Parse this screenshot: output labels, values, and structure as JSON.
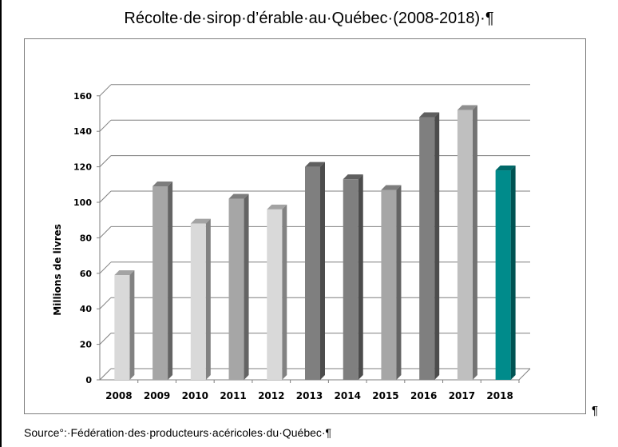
{
  "chart_data": {
    "type": "bar",
    "title": "Récolte·de·sirop·d’érable·au·Québec·(2008-2018)·¶",
    "xlabel": "",
    "ylabel": "Millions de livres",
    "ylim": [
      0,
      160
    ],
    "yticks": [
      0,
      20,
      40,
      60,
      80,
      100,
      120,
      140,
      160
    ],
    "grid": true,
    "categories": [
      "2008",
      "2009",
      "2010",
      "2011",
      "2012",
      "2013",
      "2014",
      "2015",
      "2016",
      "2017",
      "2018"
    ],
    "values": [
      59,
      109,
      88,
      102,
      96,
      120,
      113,
      107,
      148,
      152,
      118
    ],
    "colors": [
      "#d9d9d9",
      "#a6a6a6",
      "#d9d9d9",
      "#a6a6a6",
      "#d9d9d9",
      "#7f7f7f",
      "#7f7f7f",
      "#a6a6a6",
      "#7f7f7f",
      "#bfbfbf",
      "#008b8b"
    ]
  },
  "source": "Source°:·Fédération·des·producteurs·acéricoles·du·Québec·¶",
  "trailing_mark": "¶"
}
